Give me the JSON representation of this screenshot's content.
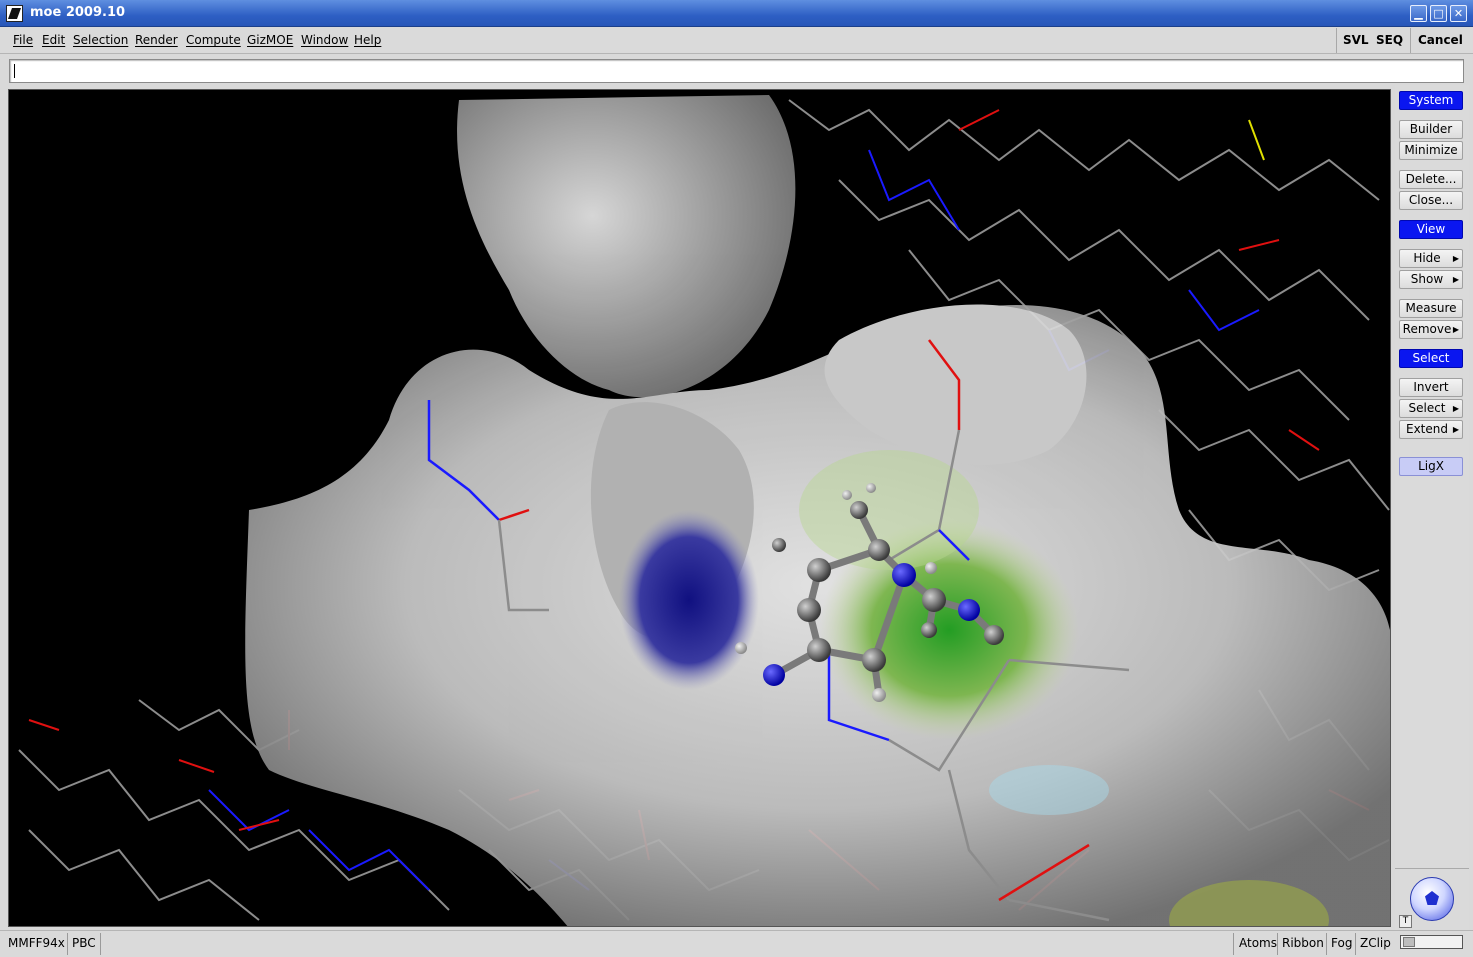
{
  "window": {
    "title": "moe 2009.10",
    "controls": {
      "minimize": "▁",
      "maximize": "□",
      "close": "✕"
    }
  },
  "menubar": {
    "items": [
      "File",
      "Edit",
      "Selection",
      "Render",
      "Compute",
      "GizMOE",
      "Window",
      "Help"
    ],
    "right": {
      "svl": "SVL",
      "seq": "SEQ",
      "cancel": "Cancel"
    }
  },
  "command_line": {
    "value": ""
  },
  "right_panel": {
    "system_header": "System",
    "builder": "Builder",
    "minimize": "Minimize",
    "delete": "Delete...",
    "close": "Close...",
    "view_header": "View",
    "hide": "Hide",
    "show": "Show",
    "measure": "Measure",
    "remove": "Remove",
    "select_header": "Select",
    "invert": "Invert",
    "select": "Select",
    "extend": "Extend",
    "ligx": "LigX",
    "corner_badge": "T"
  },
  "statusbar": {
    "left": [
      "MMFF94x",
      "PBC"
    ],
    "right": [
      "Atoms",
      "Ribbon",
      "Fog",
      "ZClip"
    ]
  },
  "colors": {
    "title_bar": "#2e5fc4",
    "panel_header": "#0a16f0",
    "ligx": "#c8ccf6",
    "carbon": "#8c8c8c",
    "nitrogen": "#1a1aff",
    "oxygen": "#e01010",
    "sulfur": "#e0e000",
    "surface": "#c8c8c8"
  }
}
